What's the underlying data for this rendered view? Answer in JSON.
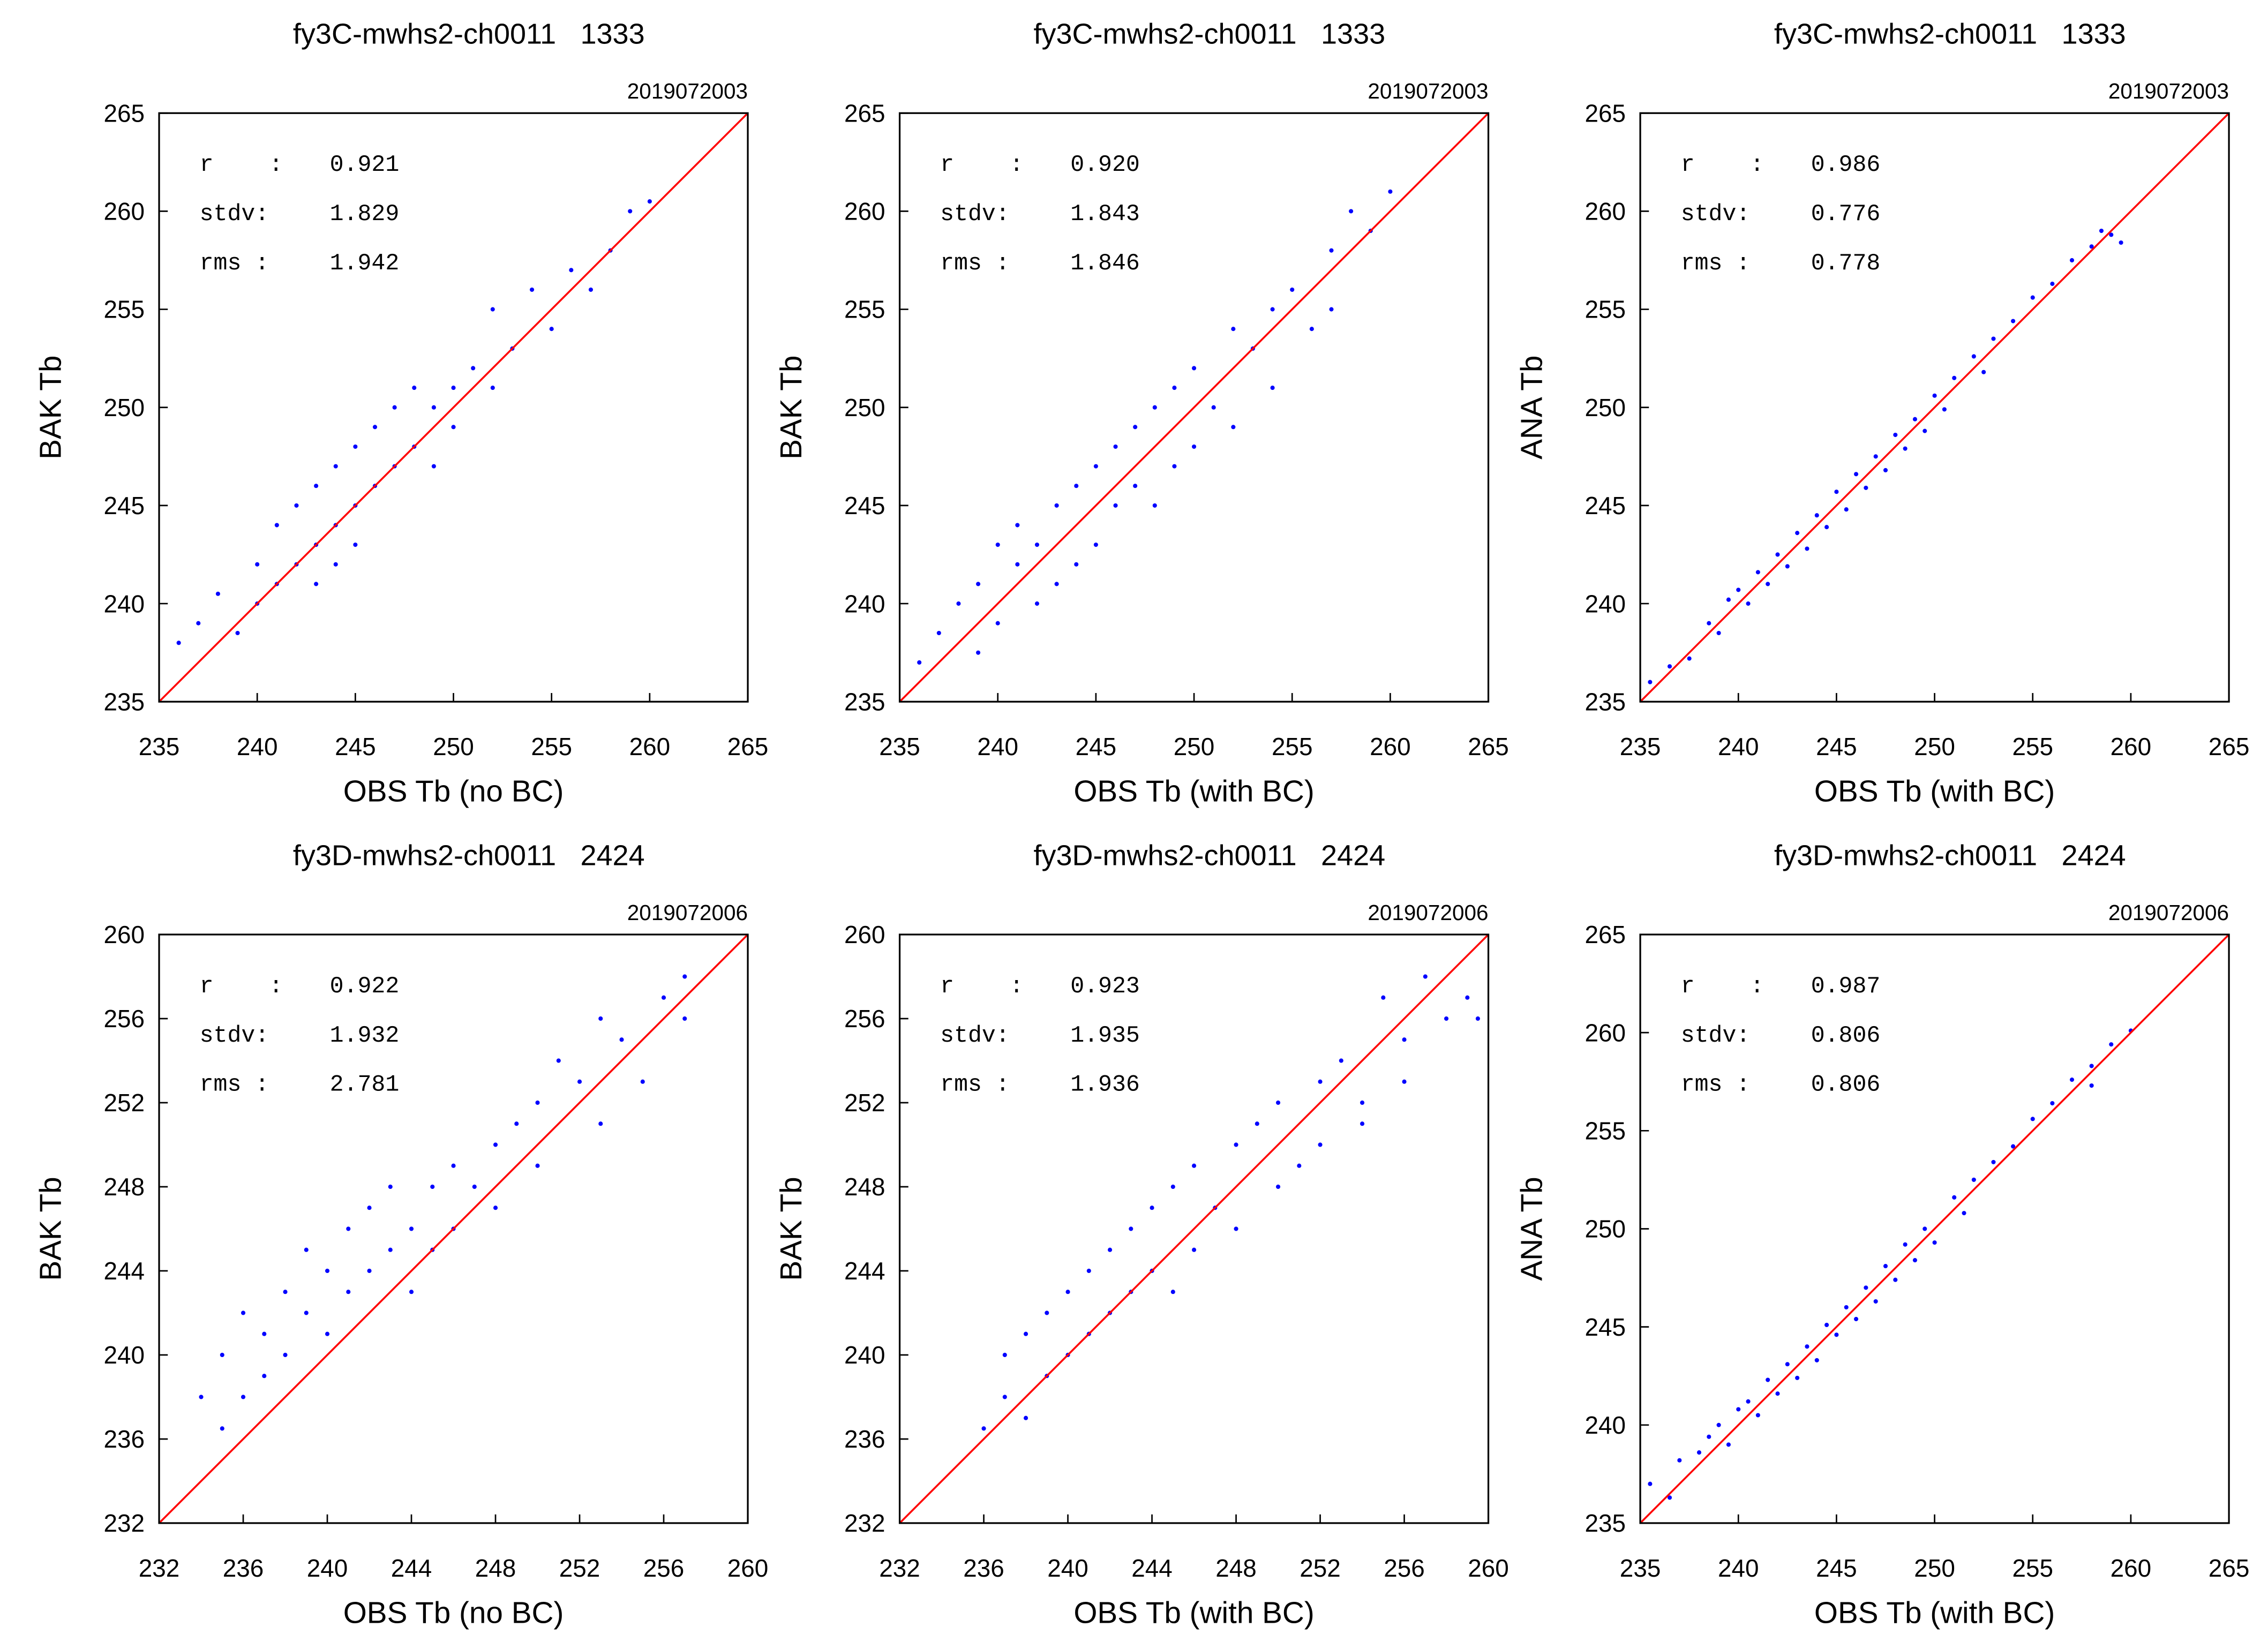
{
  "chart_data": [
    {
      "type": "scatter",
      "title": "fy3C-mwhs2-ch0011",
      "subtitle": "1333",
      "date": "2019072003",
      "xlabel": "OBS Tb (no BC)",
      "ylabel": "BAK Tb",
      "xlim": [
        235,
        265
      ],
      "ylim": [
        235,
        265
      ],
      "xticks": [
        235,
        240,
        245,
        250,
        255,
        260,
        265
      ],
      "yticks": [
        235,
        240,
        245,
        250,
        255,
        260,
        265
      ],
      "stats": [
        {
          "label": "r    :",
          "value": "0.921"
        },
        {
          "label": "stdv:",
          "value": "1.829"
        },
        {
          "label": "rms :",
          "value": "1.942"
        }
      ],
      "color": "#0000ff",
      "reference_color": "#ff0000",
      "x": [
        236,
        237,
        238,
        239,
        240,
        240,
        241,
        241,
        242,
        242,
        243,
        243,
        243,
        244,
        244,
        244,
        245,
        245,
        245,
        246,
        246,
        247,
        247,
        248,
        248,
        249,
        249,
        250,
        250,
        251,
        252,
        252,
        253,
        254,
        255,
        256,
        257,
        258,
        259,
        260
      ],
      "y": [
        238,
        239,
        240.5,
        238.5,
        242,
        240,
        244,
        241,
        245,
        242,
        246,
        243,
        241,
        247,
        244,
        242,
        248,
        245,
        243,
        249,
        246,
        250,
        247,
        251,
        248,
        250,
        247,
        251,
        249,
        252,
        255,
        251,
        253,
        256,
        254,
        257,
        256,
        258,
        260,
        260.5
      ]
    },
    {
      "type": "scatter",
      "title": "fy3C-mwhs2-ch0011",
      "subtitle": "1333",
      "date": "2019072003",
      "xlabel": "OBS Tb (with BC)",
      "ylabel": "BAK Tb",
      "xlim": [
        235,
        265
      ],
      "ylim": [
        235,
        265
      ],
      "xticks": [
        235,
        240,
        245,
        250,
        255,
        260,
        265
      ],
      "yticks": [
        235,
        240,
        245,
        250,
        255,
        260,
        265
      ],
      "stats": [
        {
          "label": "r    :",
          "value": "0.920"
        },
        {
          "label": "stdv:",
          "value": "1.843"
        },
        {
          "label": "rms :",
          "value": "1.846"
        }
      ],
      "color": "#0000ff",
      "reference_color": "#ff0000",
      "x": [
        236,
        237,
        238,
        239,
        239,
        240,
        240,
        241,
        241,
        242,
        242,
        243,
        243,
        244,
        244,
        245,
        245,
        246,
        246,
        247,
        247,
        248,
        248,
        249,
        249,
        250,
        250,
        251,
        252,
        252,
        253,
        254,
        254,
        255,
        256,
        257,
        258,
        259,
        260,
        257
      ],
      "y": [
        237,
        238.5,
        240,
        237.5,
        241,
        243,
        239,
        242,
        244,
        240,
        243,
        245,
        241,
        246,
        242,
        247,
        243,
        248,
        245,
        249,
        246,
        250,
        245,
        251,
        247,
        252,
        248,
        250,
        254,
        249,
        253,
        255,
        251,
        256,
        254,
        258,
        260,
        259,
        261,
        255
      ]
    },
    {
      "type": "scatter",
      "title": "fy3C-mwhs2-ch0011",
      "subtitle": "1333",
      "date": "2019072003",
      "xlabel": "OBS Tb (with BC)",
      "ylabel": "ANA Tb",
      "xlim": [
        235,
        265
      ],
      "ylim": [
        235,
        265
      ],
      "xticks": [
        235,
        240,
        245,
        250,
        255,
        260,
        265
      ],
      "yticks": [
        235,
        240,
        245,
        250,
        255,
        260,
        265
      ],
      "stats": [
        {
          "label": "r    :",
          "value": "0.986"
        },
        {
          "label": "stdv:",
          "value": "0.776"
        },
        {
          "label": "rms :",
          "value": "0.778"
        }
      ],
      "color": "#0000ff",
      "reference_color": "#ff0000",
      "x": [
        235.5,
        236.5,
        237.5,
        238.5,
        239,
        239.5,
        240,
        240.5,
        241,
        241.5,
        242,
        242.5,
        243,
        243.5,
        244,
        244.5,
        245,
        245.5,
        246,
        246.5,
        247,
        247.5,
        248,
        248.5,
        249,
        249.5,
        250,
        250.5,
        251,
        252,
        252.5,
        253,
        254,
        255,
        256,
        257,
        258,
        259,
        259.5,
        258.5
      ],
      "y": [
        236,
        236.8,
        237.2,
        239,
        238.5,
        240.2,
        240.7,
        240,
        241.6,
        241,
        242.5,
        241.9,
        243.6,
        242.8,
        244.5,
        243.9,
        245.7,
        244.8,
        246.6,
        245.9,
        247.5,
        246.8,
        248.6,
        247.9,
        249.4,
        248.8,
        250.6,
        249.9,
        251.5,
        252.6,
        251.8,
        253.5,
        254.4,
        255.6,
        256.3,
        257.5,
        258.2,
        258.8,
        258.4,
        259
      ]
    },
    {
      "type": "scatter",
      "title": "fy3D-mwhs2-ch0011",
      "subtitle": "2424",
      "date": "2019072006",
      "xlabel": "OBS Tb (no BC)",
      "ylabel": "BAK Tb",
      "xlim": [
        232,
        260
      ],
      "ylim": [
        232,
        260
      ],
      "xticks": [
        232,
        236,
        240,
        244,
        248,
        252,
        256,
        260
      ],
      "yticks": [
        232,
        236,
        240,
        244,
        248,
        252,
        256,
        260
      ],
      "stats": [
        {
          "label": "r    :",
          "value": "0.922"
        },
        {
          "label": "stdv:",
          "value": "1.932"
        },
        {
          "label": "rms :",
          "value": "2.781"
        }
      ],
      "color": "#0000ff",
      "reference_color": "#ff0000",
      "x": [
        234,
        235,
        235,
        236,
        236,
        237,
        237,
        238,
        238,
        239,
        239,
        240,
        240,
        241,
        241,
        242,
        242,
        243,
        243,
        244,
        244,
        245,
        245,
        246,
        246,
        247,
        248,
        248,
        249,
        250,
        250,
        251,
        252,
        253,
        253,
        254,
        255,
        256,
        257,
        257
      ],
      "y": [
        238,
        236.5,
        240,
        238,
        242,
        239,
        241,
        243,
        240,
        245,
        242,
        244,
        241,
        246,
        243,
        247,
        244,
        245,
        248,
        246,
        243,
        248,
        245,
        249,
        246,
        248,
        250,
        247,
        251,
        252,
        249,
        254,
        253,
        256,
        251,
        255,
        253,
        257,
        256,
        258
      ]
    },
    {
      "type": "scatter",
      "title": "fy3D-mwhs2-ch0011",
      "subtitle": "2424",
      "date": "2019072006",
      "xlabel": "OBS Tb (with BC)",
      "ylabel": "BAK Tb",
      "xlim": [
        232,
        260
      ],
      "ylim": [
        232,
        260
      ],
      "xticks": [
        232,
        236,
        240,
        244,
        248,
        252,
        256,
        260
      ],
      "yticks": [
        232,
        236,
        240,
        244,
        248,
        252,
        256,
        260
      ],
      "stats": [
        {
          "label": "r    :",
          "value": "0.923"
        },
        {
          "label": "stdv:",
          "value": "1.935"
        },
        {
          "label": "rms :",
          "value": "1.936"
        }
      ],
      "color": "#0000ff",
      "reference_color": "#ff0000",
      "x": [
        236,
        237,
        237,
        238,
        238,
        239,
        239,
        240,
        240,
        241,
        241,
        242,
        242,
        243,
        243,
        244,
        244,
        245,
        245,
        246,
        246,
        247,
        248,
        248,
        249,
        250,
        250,
        251,
        252,
        252,
        253,
        254,
        255,
        256,
        256,
        257,
        258,
        259,
        259.5,
        254
      ],
      "y": [
        236.5,
        238,
        240,
        237,
        241,
        239,
        242,
        243,
        240,
        244,
        241,
        245,
        242,
        243,
        246,
        244,
        247,
        243,
        248,
        245,
        249,
        247,
        250,
        246,
        251,
        248,
        252,
        249,
        253,
        250,
        254,
        252,
        257,
        255,
        253,
        258,
        256,
        257,
        256,
        251
      ]
    },
    {
      "type": "scatter",
      "title": "fy3D-mwhs2-ch0011",
      "subtitle": "2424",
      "date": "2019072006",
      "xlabel": "OBS Tb (with BC)",
      "ylabel": "ANA Tb",
      "xlim": [
        235,
        265
      ],
      "ylim": [
        235,
        265
      ],
      "xticks": [
        235,
        240,
        245,
        250,
        255,
        260,
        265
      ],
      "yticks": [
        235,
        240,
        245,
        250,
        255,
        260,
        265
      ],
      "stats": [
        {
          "label": "r    :",
          "value": "0.987"
        },
        {
          "label": "stdv:",
          "value": "0.806"
        },
        {
          "label": "rms :",
          "value": "0.806"
        }
      ],
      "color": "#0000ff",
      "reference_color": "#ff0000",
      "x": [
        235.5,
        236.5,
        237,
        238,
        238.5,
        239,
        239.5,
        240,
        240.5,
        241,
        241.5,
        242,
        242.5,
        243,
        243.5,
        244,
        244.5,
        245,
        245.5,
        246,
        246.5,
        247,
        247.5,
        248,
        248.5,
        249,
        249.5,
        250,
        251,
        251.5,
        252,
        253,
        254,
        255,
        256,
        257,
        258,
        259,
        260,
        258
      ],
      "y": [
        237,
        236.3,
        238.2,
        238.6,
        239.4,
        240,
        239,
        240.8,
        241.2,
        240.5,
        242.3,
        241.6,
        243.1,
        242.4,
        244,
        243.3,
        245.1,
        244.6,
        246,
        245.4,
        247,
        246.3,
        248.1,
        247.4,
        249.2,
        248.4,
        250,
        249.3,
        251.6,
        250.8,
        252.5,
        253.4,
        254.2,
        255.6,
        256.4,
        257.6,
        258.3,
        259.4,
        260.1,
        257.3
      ]
    }
  ]
}
